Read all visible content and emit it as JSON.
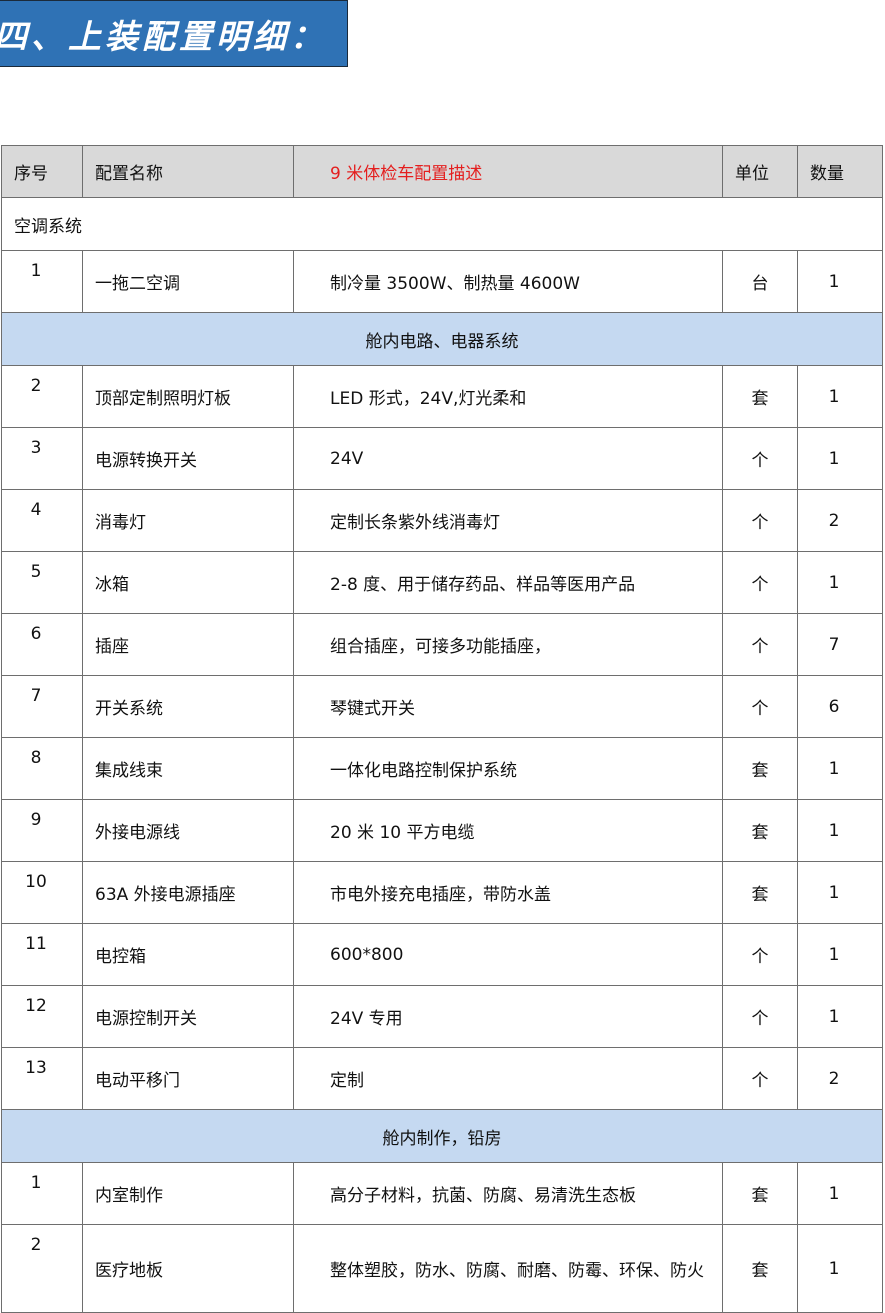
{
  "banner": {
    "title": "四、上装配置明细："
  },
  "table": {
    "headers": [
      "序号",
      "配置名称",
      "9 米体检车配置描述",
      "单位",
      "数量"
    ],
    "header_accent_color": "#e41e1e",
    "sections": [
      {
        "title": "空调系统",
        "style": "plain",
        "rows": [
          [
            "1",
            "一拖二空调",
            "制冷量 3500W、制热量 4600W",
            "台",
            "1"
          ]
        ]
      },
      {
        "title": "舱内电路、电器系统",
        "style": "shaded",
        "rows": [
          [
            "2",
            "顶部定制照明灯板",
            "LED 形式，24V,灯光柔和",
            "套",
            "1"
          ],
          [
            "3",
            "电源转换开关",
            "24V",
            "个",
            "1"
          ],
          [
            "4",
            "消毒灯",
            "定制长条紫外线消毒灯",
            "个",
            "2"
          ],
          [
            "5",
            "冰箱",
            "2-8 度、用于储存药品、样品等医用产品",
            "个",
            "1"
          ],
          [
            "6",
            "插座",
            "组合插座，可接多功能插座，",
            "个",
            "7"
          ],
          [
            "7",
            "开关系统",
            "琴键式开关",
            "个",
            "6"
          ],
          [
            "8",
            "集成线束",
            "一体化电路控制保护系统",
            "套",
            "1"
          ],
          [
            "9",
            "外接电源线",
            "20 米 10 平方电缆",
            "套",
            "1"
          ],
          [
            "10",
            "63A 外接电源插座",
            "市电外接充电插座，带防水盖",
            "套",
            "1"
          ],
          [
            "11",
            "电控箱",
            "600*800",
            "个",
            "1"
          ],
          [
            "12",
            "电源控制开关",
            "24V 专用",
            "个",
            "1"
          ],
          [
            "13",
            "电动平移门",
            "定制",
            "个",
            "2"
          ]
        ]
      },
      {
        "title": "舱内制作，铅房",
        "style": "shaded",
        "rows": [
          [
            "1",
            "内室制作",
            "高分子材料，抗菌、防腐、易清洗生态板",
            "套",
            "1"
          ],
          [
            "2",
            "医疗地板",
            "整体塑胶，防水、防腐、耐磨、防霉、环保、防火",
            "套",
            "1"
          ]
        ]
      }
    ]
  }
}
